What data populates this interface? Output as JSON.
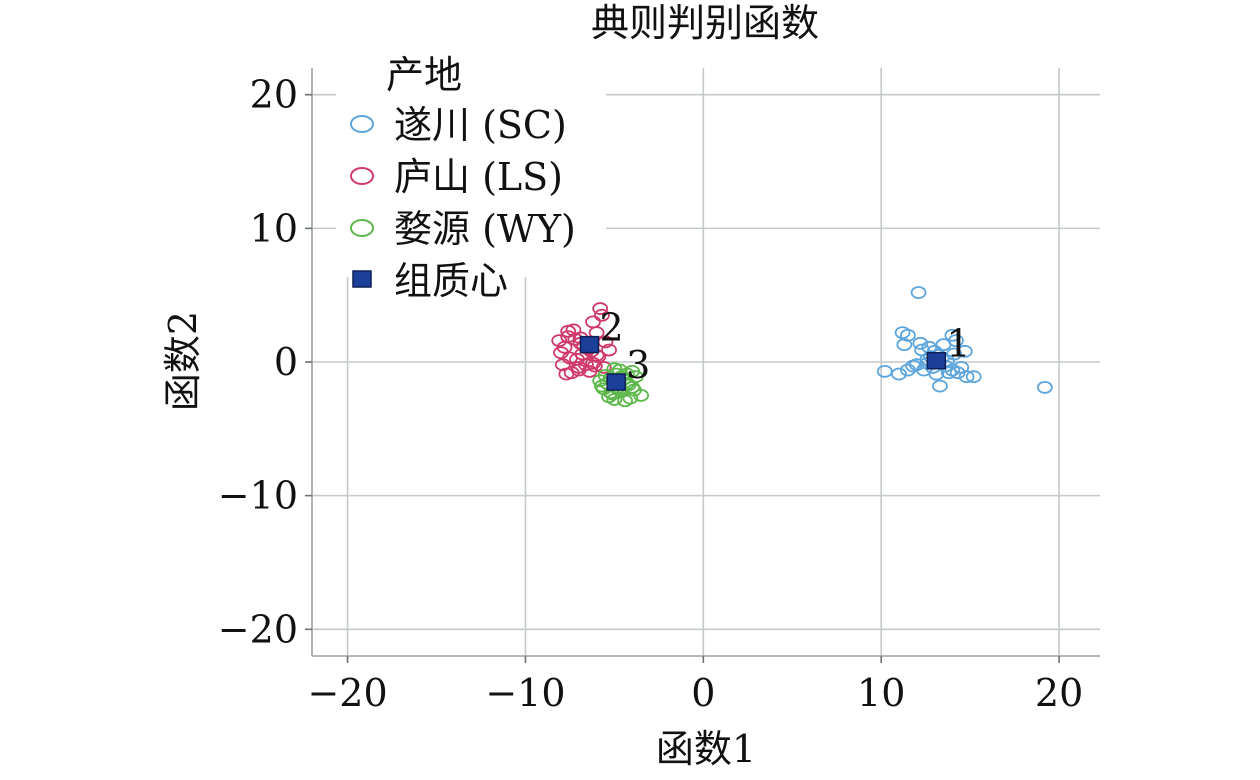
{
  "chart_data": {
    "type": "scatter",
    "title": "典则判别函数",
    "xlabel": "函数1",
    "ylabel": "函数2",
    "xlim": [
      -22,
      22.3
    ],
    "ylim": [
      -22,
      22
    ],
    "xticks": [
      -20,
      -10,
      0,
      10,
      20
    ],
    "yticks": [
      -20,
      -10,
      0,
      10,
      20
    ],
    "xtick_labels": [
      "−20",
      "−10",
      "0",
      "10",
      "20"
    ],
    "ytick_labels": [
      "−20",
      "−10",
      "0",
      "10",
      "20"
    ],
    "grid": true,
    "legend": {
      "title": "产地",
      "placement": "top-left",
      "entries": [
        "遂川 (SC)",
        "庐山 (LS)",
        "婺源 (WY)",
        "组质心"
      ]
    },
    "series": [
      {
        "name": "遂川 (SC)",
        "marker": "open-circle",
        "color": "#5da5dd",
        "x": [
          12.1,
          11.2,
          11.5,
          11.3,
          12.2,
          12.7,
          13.5,
          14.0,
          14.2,
          14.7,
          10.2,
          11.0,
          11.5,
          12.0,
          12.6,
          13.2,
          13.6,
          14.1,
          14.5,
          14.8,
          12.4,
          12.9,
          13.4,
          13.8,
          12.8,
          13.3,
          14.3,
          15.2,
          11.8,
          12.3,
          13.0,
          13.7,
          19.2,
          13.1,
          12.6,
          14.0
        ],
        "y": [
          5.2,
          2.2,
          2.0,
          1.3,
          1.4,
          1.1,
          1.3,
          2.0,
          1.6,
          0.8,
          -0.7,
          -0.9,
          -0.6,
          -0.2,
          0.2,
          0.5,
          -0.3,
          0.6,
          -0.4,
          -1.1,
          -0.6,
          -0.4,
          0.3,
          -0.8,
          0.4,
          -1.8,
          -0.8,
          -1.1,
          -0.3,
          0.9,
          0.8,
          0.1,
          -1.9,
          -0.9,
          -0.1,
          -0.6
        ]
      },
      {
        "name": "庐山 (LS)",
        "marker": "open-circle",
        "color": "#d03a6a",
        "x": [
          -5.8,
          -6.2,
          -7.6,
          -8.1,
          -6.9,
          -7.3,
          -6.0,
          -5.5,
          -7.8,
          -8.0,
          -6.5,
          -6.8,
          -7.1,
          -5.9,
          -6.3,
          -7.5,
          -7.9,
          -6.6,
          -6.1,
          -7.0,
          -5.6,
          -6.4,
          -7.4,
          -7.7,
          -6.7,
          -6.9,
          -7.2,
          -5.3,
          -6.2,
          -7.0,
          -6.0,
          -7.6,
          -5.7
        ],
        "y": [
          4.0,
          3.0,
          2.3,
          1.6,
          1.8,
          2.4,
          2.2,
          1.5,
          1.1,
          0.7,
          1.0,
          0.6,
          0.2,
          0.4,
          0.8,
          0.3,
          -0.2,
          -0.2,
          -0.3,
          -0.6,
          -0.4,
          -0.7,
          -0.8,
          -0.9,
          1.2,
          1.4,
          1.7,
          0.9,
          -0.1,
          -0.4,
          0.5,
          1.9,
          3.5
        ]
      },
      {
        "name": "婺源 (WY)",
        "marker": "open-circle",
        "color": "#5cb84a",
        "x": [
          -5.0,
          -4.7,
          -4.3,
          -4.0,
          -5.5,
          -5.2,
          -3.8,
          -4.5,
          -5.8,
          -5.4,
          -4.9,
          -4.2,
          -3.5,
          -4.6,
          -5.1,
          -5.6,
          -4.1,
          -4.4,
          -5.3,
          -4.8,
          -3.9,
          -5.7,
          -4.3,
          -4.9,
          -5.0,
          -4.6,
          -4.0,
          -5.2,
          -4.7,
          -4.4
        ],
        "y": [
          -0.5,
          -0.6,
          -0.9,
          -0.7,
          -1.0,
          -1.2,
          -1.1,
          -1.3,
          -1.4,
          -1.6,
          -1.5,
          -1.7,
          -2.5,
          -2.2,
          -2.4,
          -2.0,
          -2.7,
          -2.9,
          -2.6,
          -1.9,
          -2.1,
          -1.8,
          -1.6,
          -0.9,
          -2.8,
          -1.1,
          -1.9,
          -2.3,
          -2.0,
          -1.2
        ]
      }
    ],
    "centroids": {
      "name": "组质心",
      "marker": "filled-square",
      "color": "#1c3f9a",
      "points": [
        {
          "label": "1",
          "x": 13.1,
          "y": 0.1
        },
        {
          "label": "2",
          "x": -6.4,
          "y": 1.3
        },
        {
          "label": "3",
          "x": -4.9,
          "y": -1.5
        }
      ]
    }
  }
}
